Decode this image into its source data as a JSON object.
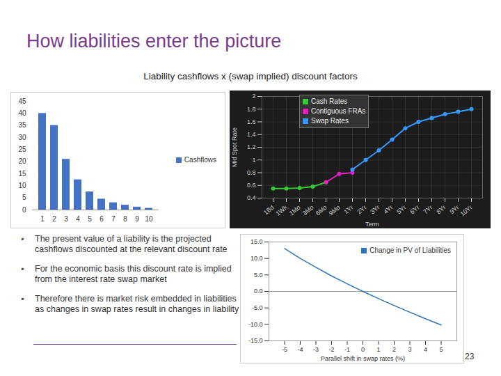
{
  "title": "How liabilities enter the picture",
  "subtitle": "Liability cashflows x (swap implied) discount factors",
  "bullets": [
    "The present value of a liability is the projected cashflows discounted at the relevant discount rate",
    "For the economic basis this discount rate is implied from the interest rate swap market",
    "Therefore there is market risk embedded in liabilities as changes in swap rates result in changes in liability"
  ],
  "page_number": "23",
  "chart_data": [
    {
      "type": "bar",
      "categories": [
        "1",
        "2",
        "3",
        "4",
        "5",
        "6",
        "7",
        "8",
        "9",
        "10"
      ],
      "series": [
        {
          "name": "Cashflows",
          "color": "#4472c4",
          "values": [
            40,
            35,
            21,
            12.5,
            7.5,
            4.5,
            3,
            2,
            1.2,
            0.7
          ]
        }
      ],
      "ylim": [
        0,
        45
      ],
      "yticks": [
        0,
        5,
        10,
        15,
        20,
        25,
        30,
        35,
        40,
        45
      ],
      "grid": false,
      "legend": "right"
    },
    {
      "type": "line",
      "ylabel": "Mid Spot Rate",
      "xlabel": "Term",
      "categories": [
        "1Bd",
        "1Wk",
        "1Mo",
        "3Mo",
        "6Mo",
        "9Mo",
        "1Yr",
        "2Yr",
        "3Yr",
        "4Yr",
        "5Yr",
        "6Yr",
        "7Yr",
        "8Yr",
        "9Yr",
        "10Yr"
      ],
      "series": [
        {
          "name": "Cash Rates",
          "color": "#33cc33",
          "values": [
            0.55,
            0.55,
            0.56,
            0.58,
            0.65,
            null,
            null,
            null,
            null,
            null,
            null,
            null,
            null,
            null,
            null,
            null
          ]
        },
        {
          "name": "Contiguous FRAs",
          "color": "#e020c0",
          "values": [
            null,
            null,
            null,
            null,
            0.65,
            0.78,
            0.8,
            null,
            null,
            null,
            null,
            null,
            null,
            null,
            null,
            null
          ]
        },
        {
          "name": "Swap Rates",
          "color": "#3399ff",
          "values": [
            null,
            null,
            null,
            null,
            null,
            null,
            0.85,
            1.0,
            1.15,
            1.32,
            1.5,
            1.6,
            1.66,
            1.72,
            1.76,
            1.8
          ]
        }
      ],
      "ylim": [
        0.4,
        2
      ],
      "yticks": [
        0.4,
        0.6,
        0.8,
        1,
        1.2,
        1.4,
        1.6,
        1.8,
        2
      ],
      "grid": true,
      "legend": "top-left",
      "marker": "circle"
    },
    {
      "type": "line",
      "xlabel": "Parallel shift in swap rates (%)",
      "x": [
        -5,
        -4,
        -3,
        -2,
        -1,
        0,
        1,
        2,
        3,
        4,
        5
      ],
      "series": [
        {
          "name": "Change in PV of Liabilities",
          "color": "#2e75b6",
          "values": [
            13,
            10,
            7.3,
            4.7,
            2.3,
            0,
            -2.2,
            -4.3,
            -6.3,
            -8.3,
            -10.2
          ]
        }
      ],
      "xlim": [
        -6,
        6
      ],
      "xticks": [
        -5,
        -4,
        -3,
        -2,
        -1,
        0,
        1,
        2,
        3,
        4,
        5
      ],
      "ylim": [
        -15,
        15
      ],
      "yticks": [
        {
          "value": -15,
          "label": "-15.0"
        },
        {
          "value": -10,
          "label": "-10.0"
        },
        {
          "value": -5,
          "label": "-5.0"
        },
        {
          "value": 0,
          "label": "0.0"
        },
        {
          "value": 5,
          "label": "5.0"
        },
        {
          "value": 10,
          "label": "10.0"
        },
        {
          "value": 15,
          "label": "15.0"
        }
      ],
      "grid": false,
      "legend": "top-right"
    }
  ]
}
